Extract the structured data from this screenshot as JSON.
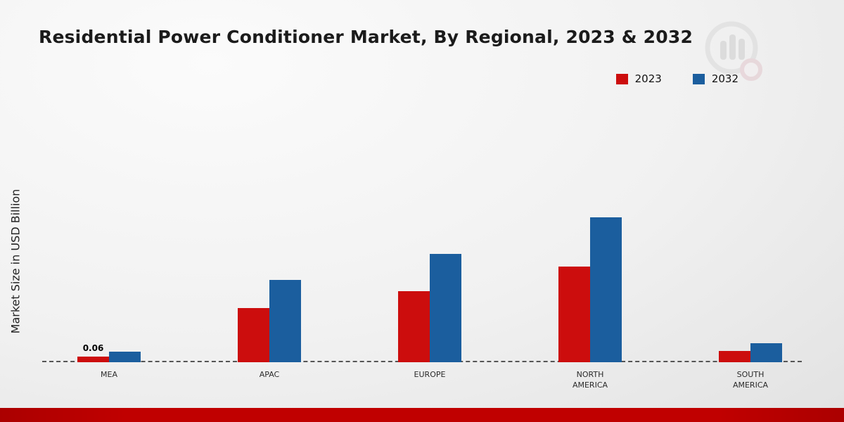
{
  "title": "Residential Power Conditioner Market, By Regional, 2023 & 2032",
  "ylabel": "Market Size in USD Billion",
  "colors": {
    "series_2023": "#cc0d0d",
    "series_2032": "#1b5e9e",
    "footer_bar": "#c00000",
    "baseline": "#555555"
  },
  "chart_data": {
    "type": "bar",
    "title": "Residential Power Conditioner Market, By Regional, 2023 & 2032",
    "xlabel": "",
    "ylabel": "Market Size in USD Billion",
    "categories": [
      "MEA",
      "APAC",
      "EUROPE",
      "NORTH AMERICA",
      "SOUTH AMERICA"
    ],
    "series": [
      {
        "name": "2023",
        "color": "#cc0d0d",
        "values": [
          0.06,
          0.58,
          0.76,
          1.02,
          0.12
        ]
      },
      {
        "name": "2032",
        "color": "#1b5e9e",
        "values": [
          0.11,
          0.88,
          1.16,
          1.55,
          0.2
        ]
      }
    ],
    "annotations": [
      {
        "category": "MEA",
        "series": "2023",
        "text": "0.06"
      }
    ],
    "units": "USD Billion",
    "ylim": [
      0,
      1.8
    ],
    "grid": false,
    "baseline_style": "dashed",
    "legend_position": "top-right",
    "legend_entries": [
      "2023",
      "2032"
    ]
  }
}
